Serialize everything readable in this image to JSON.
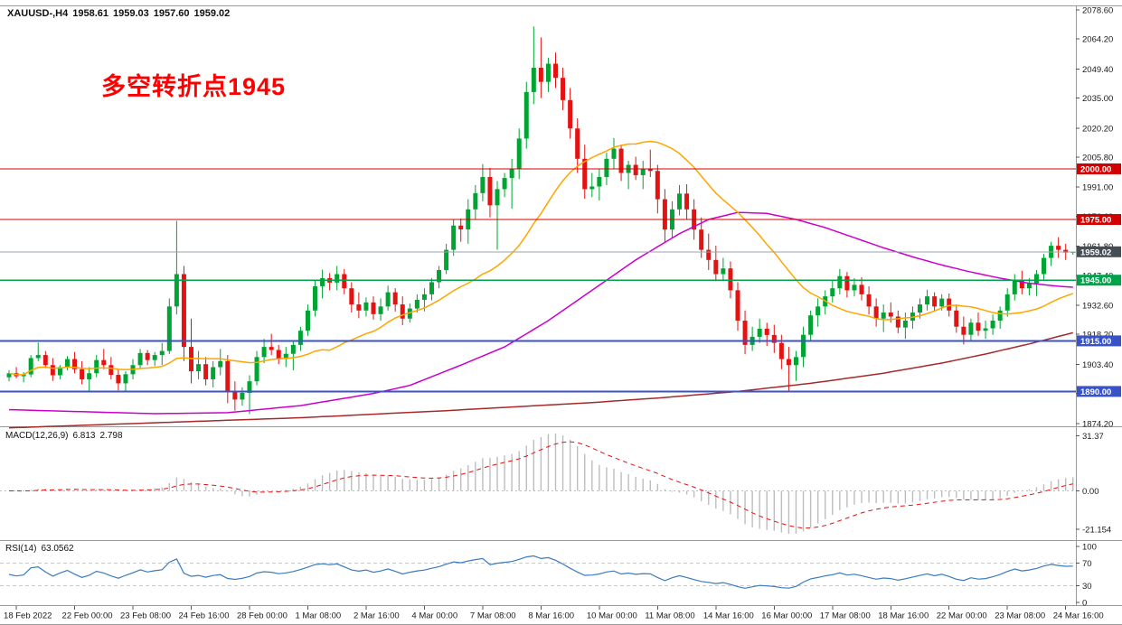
{
  "header": {
    "symbol_period": "XAUUSD-,H4",
    "open": "1958.61",
    "high": "1959.03",
    "low": "1957.60",
    "close": "1959.02"
  },
  "annotation": {
    "text": "多空转折点1945",
    "color": "#fe0000"
  },
  "chart_data": {
    "type": "candlestick",
    "symbol": "XAUUSD-",
    "timeframe": "H4",
    "ohlc_format": [
      "open",
      "high",
      "low",
      "close"
    ],
    "bull_color": "#00a432",
    "bear_color": "#e51212",
    "y_axis_labels": [
      "2078.60",
      "2064.20",
      "2049.40",
      "2035.00",
      "2020.20",
      "2005.80",
      "1991.00",
      "1976.60",
      "1961.80",
      "1947.40",
      "1932.60",
      "1918.20",
      "1903.40",
      "1889.00",
      "1874.20"
    ],
    "x_axis": {
      "labels": [
        "18 Feb 2022",
        "22 Feb 00:00",
        "23 Feb 08:00",
        "24 Feb 16:00",
        "28 Feb 00:00",
        "1 Mar 08:00",
        "2 Mar 16:00",
        "4 Mar 00:00",
        "7 Mar 08:00",
        "8 Mar 16:00",
        "10 Mar 00:00",
        "11 Mar 08:00",
        "14 Mar 16:00",
        "16 Mar 00:00",
        "17 Mar 08:00",
        "18 Mar 16:00",
        "22 Mar 00:00",
        "23 Mar 08:00",
        "24 Mar 16:00"
      ],
      "first_index": 1,
      "step": 8
    },
    "hlines": [
      {
        "value": 2000.0,
        "label": "2000.00",
        "color": "#d40000",
        "badge": "#d40000",
        "width": 1.4
      },
      {
        "value": 1975.0,
        "label": "1975.00",
        "color": "#d40000",
        "badge": "#d40000",
        "width": 1.4
      },
      {
        "value": 1959.02,
        "label": "1959.02",
        "color": "#9aa3ab",
        "badge": "#454e57",
        "width": 1,
        "is_current_price": true
      },
      {
        "value": 1945.0,
        "label": "1945.00",
        "color": "#00a24a",
        "badge": "#00a24a",
        "width": 1.4
      },
      {
        "value": 1915.0,
        "label": "1915.00",
        "color": "#3853c8",
        "badge": "#3853c8",
        "width": 2
      },
      {
        "value": 1890.0,
        "label": "1890.00",
        "color": "#3853c8",
        "badge": "#3853c8",
        "width": 2
      }
    ],
    "ma_fast": {
      "type": "sma",
      "period": 21,
      "color": "#ffa500"
    },
    "ma_medium": {
      "color": "#cc00cc",
      "points": [
        [
          0,
          1881
        ],
        [
          10,
          1880
        ],
        [
          20,
          1879
        ],
        [
          30,
          1879.5
        ],
        [
          40,
          1883
        ],
        [
          50,
          1889
        ],
        [
          55,
          1893
        ],
        [
          62,
          1903
        ],
        [
          68,
          1912
        ],
        [
          74,
          1925
        ],
        [
          80,
          1940
        ],
        [
          86,
          1955
        ],
        [
          92,
          1968
        ],
        [
          96,
          1975
        ],
        [
          100,
          1978.5
        ],
        [
          104,
          1978
        ],
        [
          108,
          1975
        ],
        [
          112,
          1971
        ],
        [
          116,
          1966
        ],
        [
          120,
          1961
        ],
        [
          124,
          1956.5
        ],
        [
          128,
          1952.5
        ],
        [
          132,
          1949
        ],
        [
          136,
          1946
        ],
        [
          140,
          1943.5
        ],
        [
          144,
          1942
        ],
        [
          146,
          1941.5
        ]
      ]
    },
    "ma_slow": {
      "color": "#a52a2a",
      "points": [
        [
          0,
          1872
        ],
        [
          20,
          1874.5
        ],
        [
          40,
          1877
        ],
        [
          60,
          1880.5
        ],
        [
          80,
          1884.5
        ],
        [
          90,
          1887
        ],
        [
          100,
          1890
        ],
        [
          110,
          1894
        ],
        [
          120,
          1899
        ],
        [
          128,
          1904
        ],
        [
          134,
          1908.5
        ],
        [
          140,
          1913.5
        ],
        [
          146,
          1919
        ]
      ]
    },
    "indicators": {
      "macd": {
        "name": "MACD(12,26,9)",
        "params": [
          12,
          26,
          9
        ],
        "main_value": "6.813",
        "signal_value": "2.798",
        "axis_labels": [
          "31.37",
          "0.00",
          "-21.154"
        ],
        "histogram_color": "#bdbdbd",
        "signal_color": "#e51212"
      },
      "rsi": {
        "name": "RSI(14)",
        "period": 14,
        "value": "63.0562",
        "levels": [
          70,
          30
        ],
        "axis_labels": [
          "100",
          "70",
          "30",
          "0"
        ],
        "line_color": "#3b7bbf"
      }
    },
    "candles": [
      [
        1897.0,
        1900.5,
        1895.0,
        1899.0
      ],
      [
        1899.0,
        1902.0,
        1896.5,
        1897.5
      ],
      [
        1897.5,
        1899.5,
        1894.5,
        1898.4
      ],
      [
        1898.4,
        1908.0,
        1897.0,
        1906.5
      ],
      [
        1906.5,
        1914.2,
        1905.0,
        1908.0
      ],
      [
        1908.0,
        1910.0,
        1901.5,
        1903.0
      ],
      [
        1903.0,
        1906.5,
        1895.2,
        1898.0
      ],
      [
        1898.0,
        1903.0,
        1896.0,
        1902.0
      ],
      [
        1902.0,
        1907.5,
        1900.5,
        1906.0
      ],
      [
        1906.0,
        1909.5,
        1899.0,
        1901.0
      ],
      [
        1901.0,
        1905.0,
        1893.5,
        1896.0
      ],
      [
        1896.0,
        1902.0,
        1890.2,
        1899.0
      ],
      [
        1899.0,
        1908.0,
        1897.0,
        1905.5
      ],
      [
        1905.5,
        1911.0,
        1901.0,
        1903.0
      ],
      [
        1903.0,
        1907.0,
        1896.0,
        1898.2
      ],
      [
        1898.2,
        1901.0,
        1890.5,
        1894.0
      ],
      [
        1894.0,
        1900.0,
        1889.8,
        1898.5
      ],
      [
        1898.5,
        1906.0,
        1896.0,
        1903.0
      ],
      [
        1903.0,
        1911.0,
        1901.5,
        1909.0
      ],
      [
        1909.0,
        1910.5,
        1903.0,
        1905.5
      ],
      [
        1905.5,
        1909.5,
        1902.5,
        1908.0
      ],
      [
        1908.0,
        1914.0,
        1903.0,
        1910.0
      ],
      [
        1910.0,
        1936.0,
        1908.5,
        1932.0
      ],
      [
        1932.0,
        1974.3,
        1928.0,
        1948.0
      ],
      [
        1948.0,
        1952.0,
        1905.0,
        1912.0
      ],
      [
        1912.0,
        1926.0,
        1894.0,
        1900.0
      ],
      [
        1900.0,
        1910.0,
        1896.0,
        1903.5
      ],
      [
        1903.5,
        1907.0,
        1893.0,
        1896.0
      ],
      [
        1896.0,
        1905.0,
        1892.0,
        1902.0
      ],
      [
        1902.0,
        1911.0,
        1898.0,
        1905.0
      ],
      [
        1905.0,
        1908.0,
        1884.2,
        1890.0
      ],
      [
        1890.0,
        1895.0,
        1880.5,
        1886.0
      ],
      [
        1886.0,
        1892.0,
        1883.0,
        1889.3
      ],
      [
        1889.3,
        1898.0,
        1878.8,
        1895.0
      ],
      [
        1895.0,
        1910.0,
        1893.0,
        1907.0
      ],
      [
        1907.0,
        1916.0,
        1904.0,
        1912.0
      ],
      [
        1912.0,
        1918.5,
        1908.0,
        1910.5
      ],
      [
        1910.5,
        1913.0,
        1903.5,
        1906.0
      ],
      [
        1906.0,
        1912.0,
        1902.0,
        1908.6
      ],
      [
        1908.6,
        1915.0,
        1900.4,
        1913.0
      ],
      [
        1913.0,
        1922.0,
        1910.0,
        1920.0
      ],
      [
        1920.0,
        1933.0,
        1917.5,
        1930.0
      ],
      [
        1930.0,
        1945.0,
        1927.0,
        1942.0
      ],
      [
        1942.0,
        1950.2,
        1936.0,
        1946.0
      ],
      [
        1946.0,
        1948.5,
        1940.0,
        1943.8
      ],
      [
        1943.8,
        1952.0,
        1940.0,
        1948.0
      ],
      [
        1948.0,
        1950.5,
        1938.0,
        1941.0
      ],
      [
        1941.0,
        1944.0,
        1929.0,
        1933.0
      ],
      [
        1933.0,
        1939.0,
        1926.2,
        1930.0
      ],
      [
        1930.0,
        1936.5,
        1927.0,
        1934.0
      ],
      [
        1934.0,
        1937.0,
        1925.5,
        1928.2
      ],
      [
        1928.2,
        1936.0,
        1925.0,
        1932.0
      ],
      [
        1932.0,
        1942.3,
        1930.0,
        1939.0
      ],
      [
        1939.0,
        1941.0,
        1929.5,
        1933.0
      ],
      [
        1933.0,
        1937.0,
        1922.8,
        1926.0
      ],
      [
        1926.0,
        1933.5,
        1924.0,
        1931.0
      ],
      [
        1931.0,
        1938.0,
        1929.0,
        1935.3
      ],
      [
        1935.3,
        1941.0,
        1929.6,
        1938.0
      ],
      [
        1938.0,
        1946.0,
        1935.0,
        1944.0
      ],
      [
        1944.0,
        1952.0,
        1941.0,
        1950.0
      ],
      [
        1950.0,
        1963.0,
        1948.0,
        1960.0
      ],
      [
        1960.0,
        1974.8,
        1957.0,
        1972.0
      ],
      [
        1972.0,
        1975.5,
        1964.0,
        1970.1
      ],
      [
        1970.1,
        1985.0,
        1963.0,
        1980.0
      ],
      [
        1980.0,
        1992.0,
        1975.0,
        1988.0
      ],
      [
        1988.0,
        2002.4,
        1984.0,
        1996.0
      ],
      [
        1996.0,
        2000.5,
        1976.0,
        1982.0
      ],
      [
        1982.0,
        1994.0,
        1960.0,
        1990.0
      ],
      [
        1990.0,
        1998.0,
        1986.0,
        1995.5
      ],
      [
        1995.5,
        2005.0,
        1980.3,
        2000.0
      ],
      [
        2000.0,
        2020.0,
        1995.0,
        2015.0
      ],
      [
        2015.0,
        2043.0,
        2010.0,
        2038.0
      ],
      [
        2038.0,
        2070.4,
        2032.0,
        2050.0
      ],
      [
        2050.0,
        2065.0,
        2035.0,
        2043.0
      ],
      [
        2043.0,
        2055.0,
        2038.0,
        2052.0
      ],
      [
        2052.0,
        2057.5,
        2040.0,
        2045.0
      ],
      [
        2045.0,
        2050.0,
        2029.0,
        2034.0
      ],
      [
        2034.0,
        2040.0,
        2015.0,
        2020.0
      ],
      [
        2020.0,
        2025.0,
        1998.0,
        2005.0
      ],
      [
        2005.0,
        2012.0,
        1985.2,
        1990.0
      ],
      [
        1990.0,
        1998.0,
        1986.0,
        1991.3
      ],
      [
        1991.3,
        2000.0,
        1984.4,
        1996.0
      ],
      [
        1996.0,
        2008.0,
        1992.0,
        2005.0
      ],
      [
        2005.0,
        2015.2,
        2000.0,
        2010.0
      ],
      [
        2010.0,
        2012.0,
        1994.0,
        1998.0
      ],
      [
        1998.0,
        2004.0,
        1990.0,
        2002.0
      ],
      [
        2002.0,
        2006.0,
        1994.5,
        1996.9
      ],
      [
        1996.9,
        2004.0,
        1990.0,
        2000.0
      ],
      [
        2000.0,
        2009.5,
        1996.0,
        1999.0
      ],
      [
        1999.0,
        2002.0,
        1978.0,
        1985.0
      ],
      [
        1985.0,
        1990.0,
        1963.6,
        1970.0
      ],
      [
        1970.0,
        1984.0,
        1966.0,
        1980.0
      ],
      [
        1980.0,
        1992.0,
        1977.0,
        1987.8
      ],
      [
        1987.8,
        1992.4,
        1975.0,
        1980.0
      ],
      [
        1980.0,
        1985.0,
        1965.0,
        1970.0
      ],
      [
        1970.0,
        1976.0,
        1956.0,
        1960.0
      ],
      [
        1960.0,
        1968.0,
        1950.0,
        1955.0
      ],
      [
        1955.0,
        1962.0,
        1944.5,
        1948.0
      ],
      [
        1948.0,
        1956.0,
        1945.0,
        1950.8
      ],
      [
        1950.8,
        1954.3,
        1936.0,
        1940.0
      ],
      [
        1940.0,
        1944.0,
        1920.0,
        1925.0
      ],
      [
        1925.0,
        1930.0,
        1908.4,
        1913.0
      ],
      [
        1913.0,
        1922.0,
        1910.0,
        1917.0
      ],
      [
        1917.0,
        1926.0,
        1914.0,
        1921.0
      ],
      [
        1921.0,
        1924.0,
        1912.5,
        1917.9
      ],
      [
        1917.9,
        1923.0,
        1909.0,
        1914.0
      ],
      [
        1914.0,
        1918.0,
        1901.0,
        1906.0
      ],
      [
        1906.0,
        1912.0,
        1890.3,
        1903.0
      ],
      [
        1903.0,
        1910.0,
        1895.2,
        1907.0
      ],
      [
        1907.0,
        1922.0,
        1902.0,
        1918.0
      ],
      [
        1918.0,
        1930.0,
        1915.0,
        1927.6
      ],
      [
        1927.6,
        1936.0,
        1922.0,
        1932.0
      ],
      [
        1932.0,
        1940.0,
        1928.0,
        1937.0
      ],
      [
        1937.0,
        1945.0,
        1934.0,
        1941.0
      ],
      [
        1941.0,
        1950.5,
        1938.0,
        1947.0
      ],
      [
        1947.0,
        1949.0,
        1936.5,
        1940.0
      ],
      [
        1940.0,
        1946.0,
        1937.0,
        1942.7
      ],
      [
        1942.7,
        1946.5,
        1935.0,
        1938.0
      ],
      [
        1938.0,
        1942.0,
        1928.0,
        1932.0
      ],
      [
        1932.0,
        1936.0,
        1922.0,
        1926.0
      ],
      [
        1926.0,
        1933.0,
        1919.4,
        1929.0
      ],
      [
        1929.0,
        1934.0,
        1924.0,
        1927.0
      ],
      [
        1927.0,
        1930.0,
        1918.8,
        1921.6
      ],
      [
        1921.6,
        1929.0,
        1916.0,
        1925.0
      ],
      [
        1925.0,
        1932.0,
        1921.0,
        1929.0
      ],
      [
        1929.0,
        1936.0,
        1926.0,
        1933.0
      ],
      [
        1933.0,
        1940.3,
        1930.0,
        1937.0
      ],
      [
        1937.0,
        1939.0,
        1929.5,
        1932.0
      ],
      [
        1932.0,
        1938.0,
        1930.0,
        1935.9
      ],
      [
        1935.9,
        1938.4,
        1927.0,
        1930.0
      ],
      [
        1930.0,
        1933.0,
        1919.0,
        1922.0
      ],
      [
        1922.0,
        1927.0,
        1913.2,
        1918.0
      ],
      [
        1918.0,
        1926.0,
        1915.0,
        1924.0
      ],
      [
        1924.0,
        1929.0,
        1917.5,
        1920.0
      ],
      [
        1920.0,
        1925.0,
        1916.0,
        1921.2
      ],
      [
        1921.2,
        1928.0,
        1918.0,
        1925.0
      ],
      [
        1925.0,
        1932.0,
        1921.0,
        1930.0
      ],
      [
        1930.0,
        1941.0,
        1927.0,
        1938.0
      ],
      [
        1938.0,
        1948.0,
        1935.0,
        1945.0
      ],
      [
        1945.0,
        1949.7,
        1938.0,
        1941.0
      ],
      [
        1941.0,
        1946.0,
        1937.5,
        1943.4
      ],
      [
        1943.4,
        1950.0,
        1937.2,
        1948.0
      ],
      [
        1948.0,
        1958.0,
        1945.0,
        1956.0
      ],
      [
        1956.0,
        1964.0,
        1952.0,
        1962.0
      ],
      [
        1962.0,
        1966.2,
        1956.0,
        1960.0
      ],
      [
        1960.0,
        1963.0,
        1955.0,
        1958.6
      ],
      [
        1958.6,
        1959.0,
        1957.6,
        1959.0
      ]
    ]
  }
}
